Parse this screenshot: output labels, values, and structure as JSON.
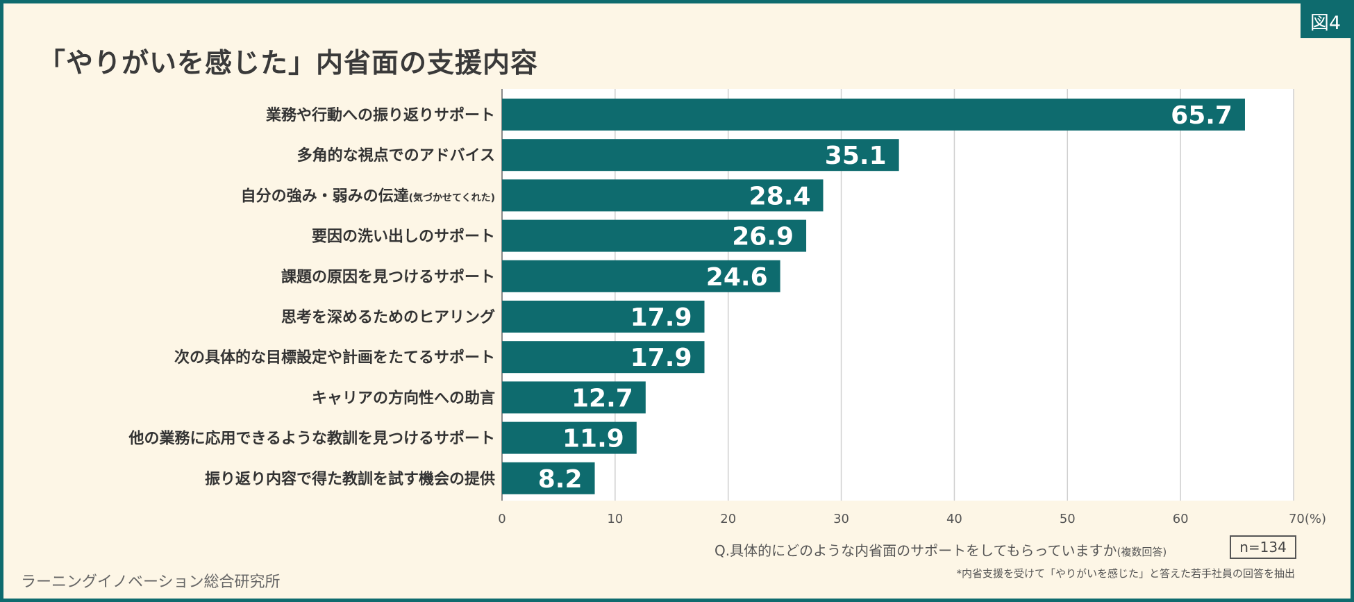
{
  "header": {
    "title": "「やりがいを感じた」内省面の支援内容",
    "figure_tag": "図4"
  },
  "chart_data": {
    "type": "bar",
    "orientation": "horizontal",
    "title": "「やりがいを感じた」内省面の支援内容",
    "categories": [
      {
        "label": "業務や行動への振り返りサポート",
        "note": ""
      },
      {
        "label": "多角的な視点でのアドバイス",
        "note": ""
      },
      {
        "label": "自分の強み・弱みの伝達",
        "note": "(気づかせてくれた)"
      },
      {
        "label": "要因の洗い出しのサポート",
        "note": ""
      },
      {
        "label": "課題の原因を見つけるサポート",
        "note": ""
      },
      {
        "label": "思考を深めるためのヒアリング",
        "note": ""
      },
      {
        "label": "次の具体的な目標設定や計画をたてるサポート",
        "note": ""
      },
      {
        "label": "キャリアの方向性への助言",
        "note": ""
      },
      {
        "label": "他の業務に応用できるような教訓を見つけるサポート",
        "note": ""
      },
      {
        "label": "振り返り内容で得た教訓を試す機会の提供",
        "note": ""
      }
    ],
    "values": [
      65.7,
      35.1,
      28.4,
      26.9,
      24.6,
      17.9,
      17.9,
      12.7,
      11.9,
      8.2
    ],
    "xlim": [
      0,
      70
    ],
    "xticks": [
      "0",
      "10",
      "20",
      "30",
      "40",
      "50",
      "60",
      "70"
    ],
    "x_unit": "(%)",
    "bar_color": "#0e6b6e",
    "grid": true
  },
  "footer": {
    "question": "Q.具体的にどのような内省面のサポートをしてもらっていますか",
    "question_note": "(複数回答)",
    "n_label": "n=134",
    "footnote": "*内省支援を受けて「やりがいを感じた」と答えた若手社員の回答を抽出",
    "source": "ラーニングイノベーション総合研究所"
  }
}
